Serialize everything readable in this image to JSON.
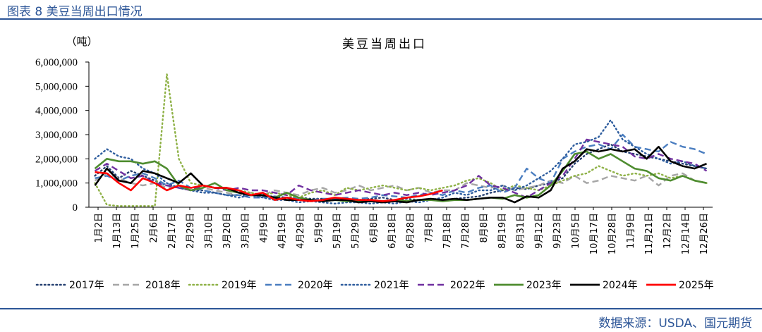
{
  "figure": {
    "header": "图表 8  美豆当周出口情况",
    "source": "数据来源：USDA、国元期货"
  },
  "chart_data": {
    "type": "line",
    "title": "美豆当周出口",
    "unit_label": "（吨）",
    "ylim": [
      0,
      6000000
    ],
    "y_ticks": [
      "0",
      "1,000,000",
      "2,000,000",
      "3,000,000",
      "4,000,000",
      "5,000,000",
      "6,000,000"
    ],
    "x_tick_labels": [
      "1月2日",
      "1月13日",
      "1月25日",
      "2月6日",
      "2月17日",
      "2月29日",
      "3月10日",
      "3月20日",
      "3月30日",
      "4月9日",
      "4月19日",
      "4月29日",
      "5月9日",
      "5月19日",
      "5月29日",
      "6月8日",
      "6月18日",
      "6月28日",
      "7月8日",
      "7月18日",
      "7月28日",
      "8月8日",
      "8月19日",
      "8月31日",
      "9月12日",
      "9月23日",
      "10月5日",
      "10月17日",
      "10月28日",
      "11月9日",
      "11月21日",
      "12月2日",
      "12月14日",
      "12月26日"
    ],
    "x_unit": "week_of_year",
    "legend_position": "bottom",
    "grid": false,
    "series": [
      {
        "name": "2017年",
        "color": "#243f70",
        "dash": "dot",
        "x": [
          1,
          2,
          3,
          4,
          5,
          6,
          7,
          8,
          9,
          10,
          11,
          12,
          13,
          14,
          15,
          16,
          17,
          18,
          19,
          20,
          21,
          22,
          23,
          24,
          25,
          26,
          27,
          28,
          29,
          30,
          31,
          32,
          33,
          34,
          35,
          36,
          37,
          38,
          39,
          40,
          41,
          42,
          43,
          44,
          45,
          46,
          47,
          48,
          49,
          50,
          51,
          52
        ],
        "values": [
          1300000,
          1700000,
          1200000,
          1500000,
          1300000,
          1100000,
          900000,
          800000,
          700000,
          700000,
          600000,
          500000,
          500000,
          500000,
          450000,
          450000,
          400000,
          400000,
          350000,
          350000,
          300000,
          300000,
          300000,
          350000,
          400000,
          300000,
          350000,
          300000,
          350000,
          300000,
          350000,
          400000,
          450000,
          600000,
          700000,
          800000,
          750000,
          900000,
          1000000,
          1200000,
          1800000,
          2200000,
          2400000,
          2600000,
          2300000,
          2200000,
          2100000,
          2000000,
          1900000,
          1800000,
          1700000,
          1600000
        ]
      },
      {
        "name": "2018年",
        "color": "#a6a6a6",
        "dash": "dash",
        "x": [
          1,
          2,
          3,
          4,
          5,
          6,
          7,
          8,
          9,
          10,
          11,
          12,
          13,
          14,
          15,
          16,
          17,
          18,
          19,
          20,
          21,
          22,
          23,
          24,
          25,
          26,
          27,
          28,
          29,
          30,
          31,
          32,
          33,
          34,
          35,
          36,
          37,
          38,
          39,
          40,
          41,
          42,
          43,
          44,
          45,
          46,
          47,
          48,
          49,
          50,
          51,
          52
        ],
        "values": [
          1100000,
          1400000,
          1200000,
          1000000,
          900000,
          1000000,
          800000,
          900000,
          700000,
          800000,
          700000,
          600000,
          500000,
          600000,
          500000,
          700000,
          600000,
          500000,
          700000,
          800000,
          600000,
          700000,
          900000,
          700000,
          800000,
          900000,
          700000,
          800000,
          600000,
          700000,
          700000,
          1000000,
          900000,
          800000,
          900000,
          700000,
          800000,
          900000,
          1100000,
          1000000,
          1300000,
          1000000,
          1100000,
          1300000,
          1200000,
          1100000,
          1300000,
          900000,
          1300000,
          1400000,
          1100000,
          1000000
        ]
      },
      {
        "name": "2019年",
        "color": "#8eb146",
        "dash": "dot",
        "x": [
          1,
          2,
          3,
          4,
          5,
          6,
          7,
          8,
          9,
          10,
          11,
          12,
          13,
          14,
          15,
          16,
          17,
          18,
          19,
          20,
          21,
          22,
          23,
          24,
          25,
          26,
          27,
          28,
          29,
          30,
          31,
          32,
          33,
          34,
          35,
          36,
          37,
          38,
          39,
          40,
          41,
          42,
          43,
          44,
          45,
          46,
          47,
          48,
          49,
          50,
          51,
          52
        ],
        "values": [
          1000000,
          100000,
          50000,
          50000,
          50000,
          50000,
          5500000,
          2000000,
          1000000,
          900000,
          800000,
          800000,
          700000,
          600000,
          500000,
          600000,
          500000,
          400000,
          600000,
          700000,
          500000,
          800000,
          700000,
          800000,
          900000,
          800000,
          700000,
          800000,
          700000,
          800000,
          900000,
          1100000,
          1200000,
          1000000,
          700000,
          900000,
          800000,
          700000,
          900000,
          1100000,
          1300000,
          1400000,
          1700000,
          1500000,
          1300000,
          1400000,
          1300000,
          1400000,
          1200000,
          1300000,
          1100000,
          1000000
        ]
      },
      {
        "name": "2020年",
        "color": "#4b7ec0",
        "dash": "dash",
        "x": [
          1,
          2,
          3,
          4,
          5,
          6,
          7,
          8,
          9,
          10,
          11,
          12,
          13,
          14,
          15,
          16,
          17,
          18,
          19,
          20,
          21,
          22,
          23,
          24,
          25,
          26,
          27,
          28,
          29,
          30,
          31,
          32,
          33,
          34,
          35,
          36,
          37,
          38,
          39,
          40,
          41,
          42,
          43,
          44,
          45,
          46,
          47,
          48,
          49,
          50,
          51,
          52
        ],
        "values": [
          1200000,
          1300000,
          1100000,
          1300000,
          1400000,
          1200000,
          900000,
          1100000,
          800000,
          700000,
          600000,
          500000,
          500000,
          400000,
          400000,
          450000,
          400000,
          350000,
          300000,
          350000,
          350000,
          400000,
          350000,
          400000,
          500000,
          450000,
          400000,
          500000,
          600000,
          500000,
          700000,
          600000,
          800000,
          900000,
          600000,
          800000,
          1600000,
          1200000,
          1000000,
          2000000,
          2300000,
          2500000,
          2600000,
          2400000,
          3000000,
          2500000,
          2400000,
          2300000,
          2700000,
          2500000,
          2400000,
          2200000
        ]
      },
      {
        "name": "2021年",
        "color": "#2e5d9e",
        "dash": "dot",
        "x": [
          1,
          2,
          3,
          4,
          5,
          6,
          7,
          8,
          9,
          10,
          11,
          12,
          13,
          14,
          15,
          16,
          17,
          18,
          19,
          20,
          21,
          22,
          23,
          24,
          25,
          26,
          27,
          28,
          29,
          30,
          31,
          32,
          33,
          34,
          35,
          36,
          37,
          38,
          39,
          40,
          41,
          42,
          43,
          44,
          45,
          46,
          47,
          48,
          49,
          50,
          51,
          52
        ],
        "values": [
          2000000,
          2400000,
          2100000,
          2000000,
          1600000,
          1400000,
          1000000,
          800000,
          700000,
          600000,
          600000,
          500000,
          400000,
          500000,
          400000,
          300000,
          300000,
          200000,
          250000,
          200000,
          150000,
          200000,
          200000,
          150000,
          200000,
          150000,
          250000,
          200000,
          300000,
          400000,
          600000,
          500000,
          700000,
          700000,
          900000,
          700000,
          900000,
          1200000,
          1500000,
          2000000,
          2600000,
          2700000,
          2900000,
          3600000,
          2800000,
          2500000,
          2200000,
          2000000,
          1800000,
          1900000,
          1700000,
          1600000
        ]
      },
      {
        "name": "2022年",
        "color": "#7030a0",
        "dash": "dash",
        "x": [
          1,
          2,
          3,
          4,
          5,
          6,
          7,
          8,
          9,
          10,
          11,
          12,
          13,
          14,
          15,
          16,
          17,
          18,
          19,
          20,
          21,
          22,
          23,
          24,
          25,
          26,
          27,
          28,
          29,
          30,
          31,
          32,
          33,
          34,
          35,
          36,
          37,
          38,
          39,
          40,
          41,
          42,
          43,
          44,
          45,
          46,
          47,
          48,
          49,
          50,
          51,
          52
        ],
        "values": [
          1500000,
          1800000,
          1500000,
          1200000,
          1300000,
          1000000,
          900000,
          800000,
          700000,
          900000,
          800000,
          700000,
          800000,
          700000,
          700000,
          600000,
          500000,
          900000,
          700000,
          600000,
          500000,
          600000,
          700000,
          600000,
          500000,
          600000,
          500000,
          600000,
          500000,
          600000,
          700000,
          900000,
          1300000,
          900000,
          800000,
          600000,
          400000,
          700000,
          1000000,
          1300000,
          2000000,
          2800000,
          2700000,
          2600000,
          2500000,
          2100000,
          2000000,
          2200000,
          2000000,
          1900000,
          1800000,
          1500000
        ]
      },
      {
        "name": "2023年",
        "color": "#4e8c2f",
        "dash": "solid",
        "x": [
          1,
          2,
          3,
          4,
          5,
          6,
          7,
          8,
          9,
          10,
          11,
          12,
          13,
          14,
          15,
          16,
          17,
          18,
          19,
          20,
          21,
          22,
          23,
          24,
          25,
          26,
          27,
          28,
          29,
          30,
          31,
          32,
          33,
          34,
          35,
          36,
          37,
          38,
          39,
          40,
          41,
          42,
          43,
          44,
          45,
          46,
          47,
          48,
          49,
          50,
          51,
          52
        ],
        "values": [
          1600000,
          2000000,
          1900000,
          1900000,
          1800000,
          1900000,
          1600000,
          900000,
          700000,
          800000,
          1000000,
          700000,
          600000,
          500000,
          500000,
          400000,
          600000,
          400000,
          300000,
          250000,
          300000,
          250000,
          250000,
          300000,
          250000,
          300000,
          250000,
          300000,
          300000,
          250000,
          300000,
          300000,
          350000,
          400000,
          350000,
          500000,
          400000,
          500000,
          900000,
          1500000,
          2200000,
          2300000,
          2000000,
          2200000,
          1900000,
          1600000,
          1500000,
          1200000,
          1100000,
          1300000,
          1100000,
          1000000
        ]
      },
      {
        "name": "2024年",
        "color": "#000000",
        "dash": "solid",
        "x": [
          1,
          2,
          3,
          4,
          5,
          6,
          7,
          8,
          9,
          10,
          11,
          12,
          13,
          14,
          15,
          16,
          17,
          18,
          19,
          20,
          21,
          22,
          23,
          24,
          25,
          26,
          27,
          28,
          29,
          30,
          31,
          32,
          33,
          34,
          35,
          36,
          37,
          38,
          39,
          40,
          41,
          42,
          43,
          44,
          45,
          46,
          47,
          48,
          49,
          50,
          51,
          52
        ],
        "values": [
          900000,
          1600000,
          1100000,
          1000000,
          1500000,
          1400000,
          1200000,
          1000000,
          1400000,
          900000,
          800000,
          800000,
          600000,
          500000,
          500000,
          400000,
          300000,
          300000,
          300000,
          250000,
          300000,
          300000,
          200000,
          250000,
          200000,
          250000,
          200000,
          300000,
          350000,
          300000,
          350000,
          300000,
          350000,
          400000,
          400000,
          200000,
          450000,
          400000,
          700000,
          1600000,
          1900000,
          2400000,
          2300000,
          2400000,
          2300000,
          2400000,
          2000000,
          2500000,
          1900000,
          1700000,
          1600000,
          1800000
        ]
      },
      {
        "name": "2025年",
        "color": "#ff0000",
        "dash": "solid",
        "x": [
          1,
          2,
          3,
          4,
          5,
          6,
          7,
          8,
          9,
          10,
          11,
          12,
          13,
          14,
          15,
          16,
          17,
          18,
          19,
          20,
          21,
          22,
          23,
          24,
          25,
          26,
          27,
          28,
          29,
          30
        ],
        "values": [
          1450000,
          1400000,
          1000000,
          700000,
          1200000,
          1000000,
          700000,
          900000,
          800000,
          900000,
          800000,
          800000,
          700000,
          500000,
          600000,
          300000,
          400000,
          300000,
          250000,
          300000,
          400000,
          350000,
          300000,
          300000,
          250000,
          300000,
          400000,
          450000,
          550000,
          700000
        ]
      }
    ]
  }
}
